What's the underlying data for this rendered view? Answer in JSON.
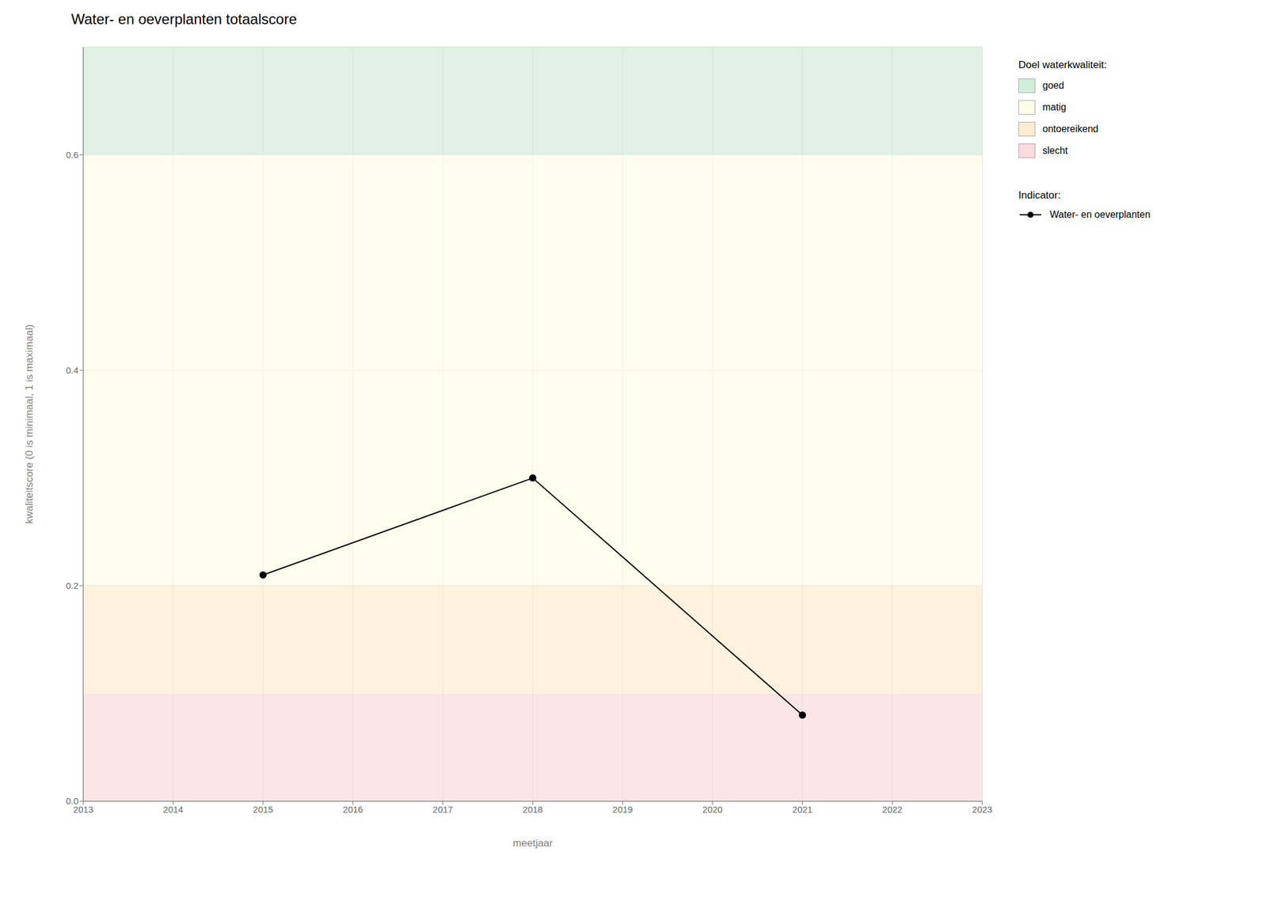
{
  "chart_data": {
    "type": "line",
    "title": "Water- en oeverplanten totaalscore",
    "x_label": "meetjaar",
    "y_label": "kwaliteitscore (0 is minimaal, 1 is maximaal)",
    "x": [
      2015,
      2018,
      2021
    ],
    "series": [
      {
        "name": "Water- en oeverplanten",
        "color": "#000000",
        "marker": "circle",
        "values": [
          0.21,
          0.3,
          0.08
        ]
      }
    ],
    "xlim": [
      2013,
      2023
    ],
    "xticks": [
      2013,
      2014,
      2015,
      2016,
      2017,
      2018,
      2019,
      2020,
      2021,
      2022,
      2023
    ],
    "ylim": [
      0,
      0.7
    ],
    "yticks": [
      {
        "value": 0.0,
        "label": "0.0"
      },
      0.2,
      0.4,
      0.6
    ],
    "grid": true,
    "legend": "right",
    "zones_legend_title": "Doel waterkwaliteit:",
    "zones": [
      {
        "label": "goed",
        "ymin": 0.6,
        "ymax": 0.7,
        "color": "#d4edda"
      },
      {
        "label": "matig",
        "ymin": 0.2,
        "ymax": 0.6,
        "color": "#fffde7"
      },
      {
        "label": "ontoereikend",
        "ymin": 0.1,
        "ymax": 0.2,
        "color": "#fdebd0"
      },
      {
        "label": "slecht",
        "ymin": 0.0,
        "ymax": 0.1,
        "color": "#fadadd"
      }
    ],
    "series_legend_title": "Indicator:"
  }
}
